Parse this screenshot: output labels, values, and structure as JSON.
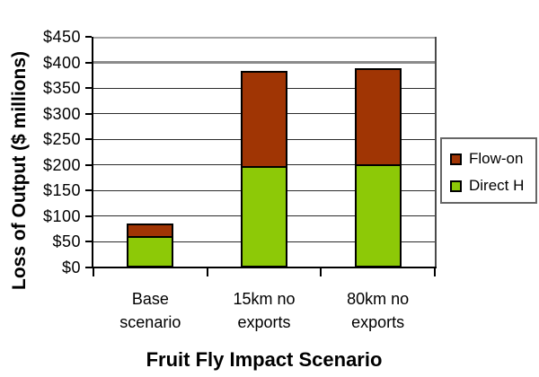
{
  "chart_data": {
    "type": "bar",
    "stacked": true,
    "title": "",
    "xlabel": "Fruit Fly Impact Scenario",
    "ylabel": "Loss of Output ($ millions)",
    "categories": [
      "Base\nscenario",
      "15km no\nexports",
      "80km no\nexports"
    ],
    "series": [
      {
        "name": "Direct H",
        "color": "#8DC907",
        "values": [
          62,
          197,
          202
        ]
      },
      {
        "name": "Flow-on",
        "color": "#A03504",
        "values": [
          25,
          186,
          188
        ]
      }
    ],
    "stack_totals": [
      87,
      383,
      390
    ],
    "ylim": [
      0,
      450
    ],
    "ytick_step": 50,
    "yticks": [
      "$0",
      "$50",
      "$100",
      "$150",
      "$200",
      "$250",
      "$300",
      "$350",
      "$400",
      "$450"
    ],
    "grid": true,
    "legend_position": "right",
    "legend_labels": [
      "Flow-on",
      "Direct H"
    ],
    "colors": {
      "background": "#FFFFFF",
      "axis": "#000000",
      "gridline": "#2B2B2B",
      "gridline_heavy": "#8B8B8B",
      "plot_border": "#4A4A4A",
      "legend_border": "#666666",
      "text": "#000000"
    }
  }
}
